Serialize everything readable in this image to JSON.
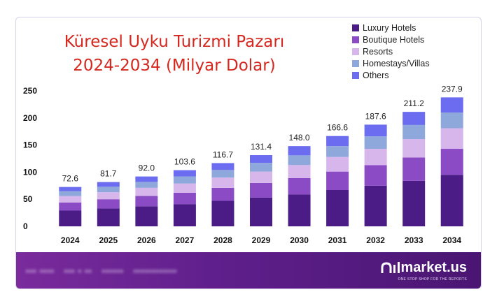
{
  "chart_data": {
    "type": "stacked-bar",
    "title_line1": "Küresel Uyku Turizmi Pazarı",
    "title_line2": "2024-2034 (Milyar Dolar)",
    "categories": [
      "2024",
      "2025",
      "2026",
      "2027",
      "2028",
      "2029",
      "2030",
      "2031",
      "2032",
      "2033",
      "2034"
    ],
    "totals": [
      72.6,
      81.7,
      92.0,
      103.6,
      116.7,
      131.4,
      148.0,
      166.6,
      187.6,
      211.2,
      237.9
    ],
    "total_labels": [
      "72.6",
      "81.7",
      "92.0",
      "103.6",
      "116.7",
      "131.4",
      "148.0",
      "166.6",
      "187.6",
      "211.2",
      "237.9"
    ],
    "series": [
      {
        "name": "Luxury Hotels",
        "color": "#4b1b86",
        "values": [
          29,
          33,
          37,
          41,
          47,
          53,
          59,
          67,
          75,
          84,
          95
        ]
      },
      {
        "name": "Boutique Hotels",
        "color": "#8a4bc4",
        "values": [
          15,
          17,
          19,
          21,
          24,
          27,
          30,
          34,
          38,
          43,
          48
        ]
      },
      {
        "name": "Resorts",
        "color": "#d7b6ec",
        "values": [
          12,
          13,
          15,
          17,
          19,
          21,
          24,
          27,
          30,
          34,
          38
        ]
      },
      {
        "name": "Homestays/Villas",
        "color": "#8fa8dc",
        "values": [
          9,
          10,
          11,
          13,
          14,
          16,
          18,
          20,
          23,
          26,
          29
        ]
      },
      {
        "name": "Others",
        "color": "#6b6cf0",
        "values": [
          7.6,
          8.7,
          10.0,
          11.6,
          12.7,
          14.4,
          17.0,
          18.6,
          21.6,
          24.2,
          27.9
        ]
      }
    ],
    "ylim": [
      0,
      250
    ],
    "yticks": [
      0,
      50,
      100,
      150,
      200,
      250
    ],
    "xlabel": "",
    "ylabel": "",
    "legend_position": "top-right"
  },
  "footer": {
    "brand": "market.us",
    "tagline": "ONE STOP SHOP FOR THE REPORTS",
    "blurred_text": [
      "••• ••••",
      "••• • ••",
      "••••••",
      "••••••••••••"
    ]
  }
}
